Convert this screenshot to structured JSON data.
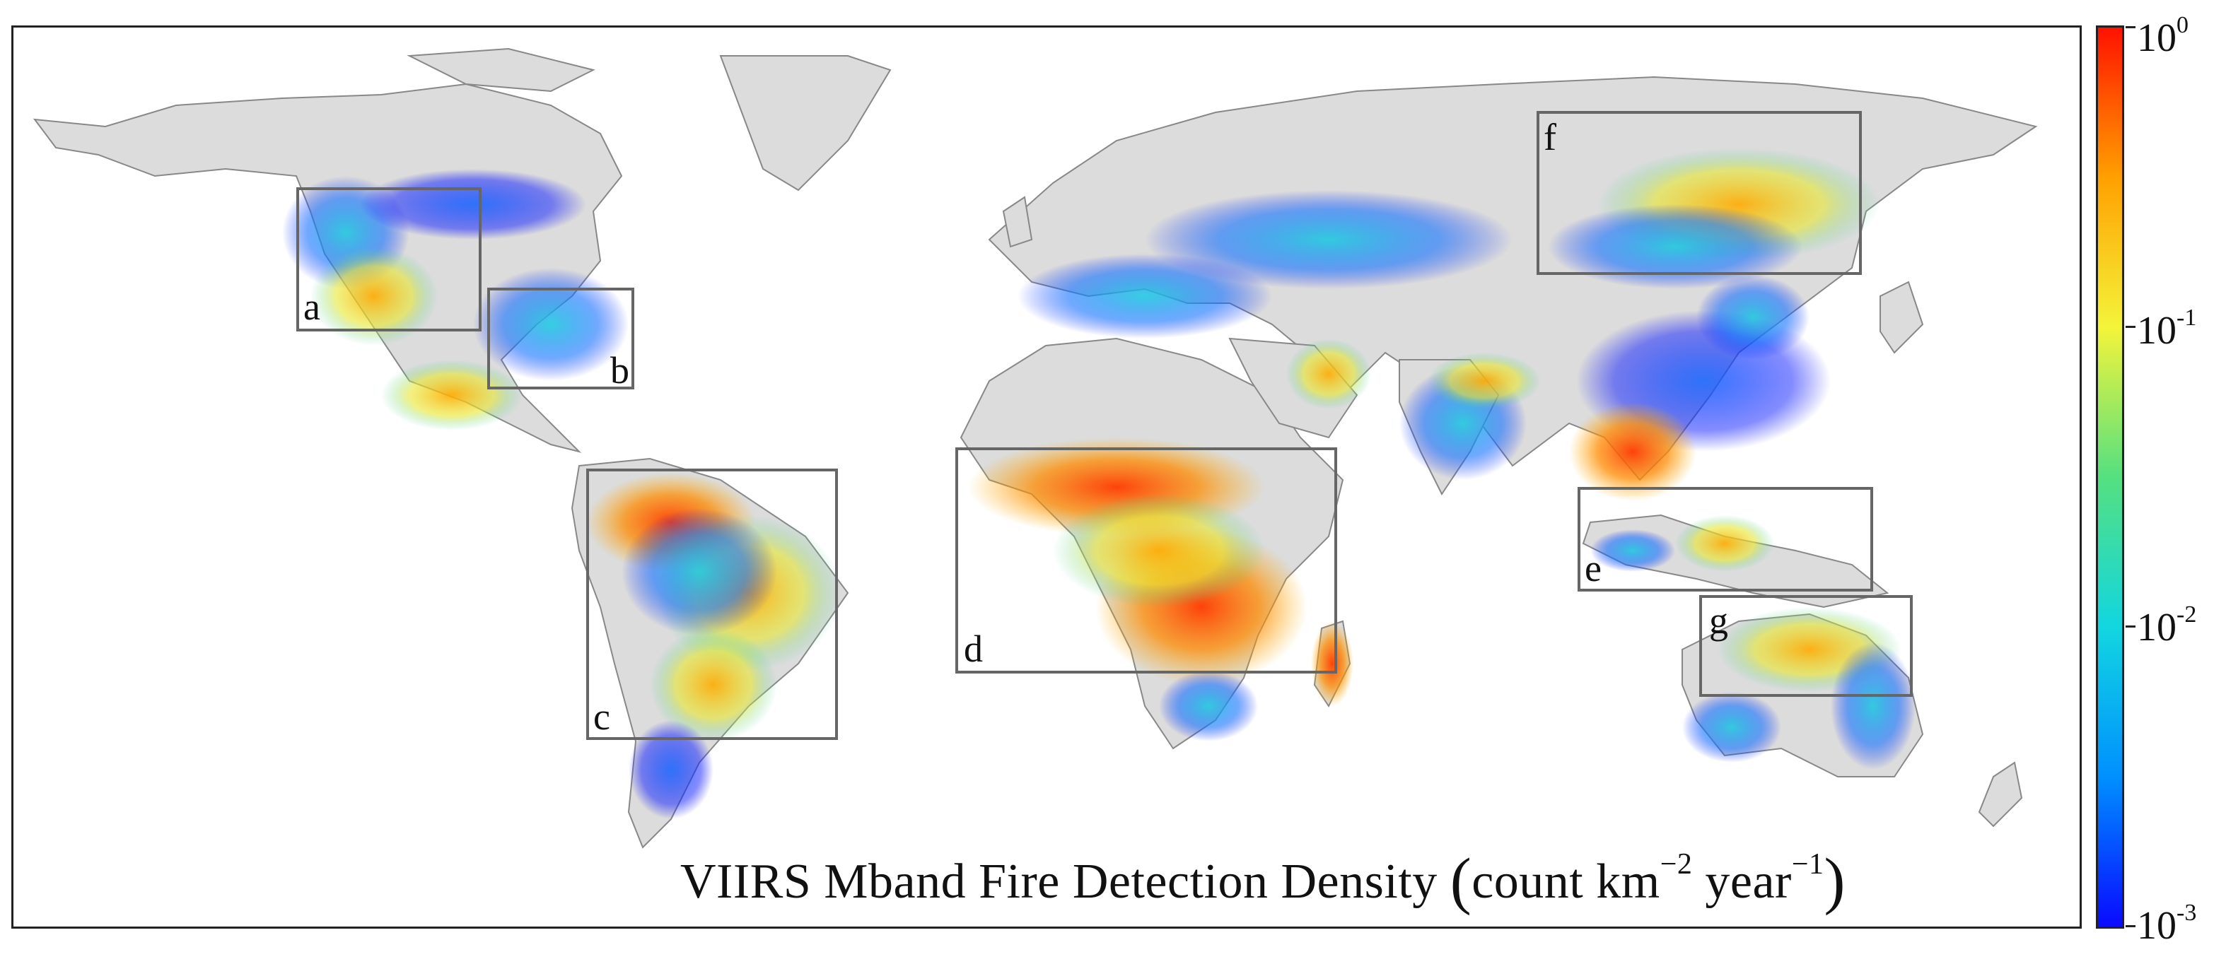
{
  "figure": {
    "title": {
      "prefix": "VIIRS Mband Fire Detection Density ",
      "open_paren": "(",
      "unit_count": "count km",
      "exp_km": "−2",
      "unit_year": " year",
      "exp_year": "−1",
      "close_paren": ")"
    },
    "regions": [
      {
        "id": "a",
        "label": "a"
      },
      {
        "id": "b",
        "label": "b"
      },
      {
        "id": "c",
        "label": "c"
      },
      {
        "id": "d",
        "label": "d"
      },
      {
        "id": "e",
        "label": "e"
      },
      {
        "id": "f",
        "label": "f"
      },
      {
        "id": "g",
        "label": "g"
      }
    ],
    "colorbar": {
      "colors": [
        "#0a0aff",
        "#0090ff",
        "#12d6e0",
        "#55e080",
        "#f4f43a",
        "#ffa000",
        "#ff1200"
      ],
      "ticks": [
        {
          "base": "10",
          "exp": "0"
        },
        {
          "base": "10",
          "exp": "-1"
        },
        {
          "base": "10",
          "exp": "-2"
        },
        {
          "base": "10",
          "exp": "-3"
        }
      ]
    },
    "land_color": "#dcdcdc",
    "box_color": "#666666"
  }
}
